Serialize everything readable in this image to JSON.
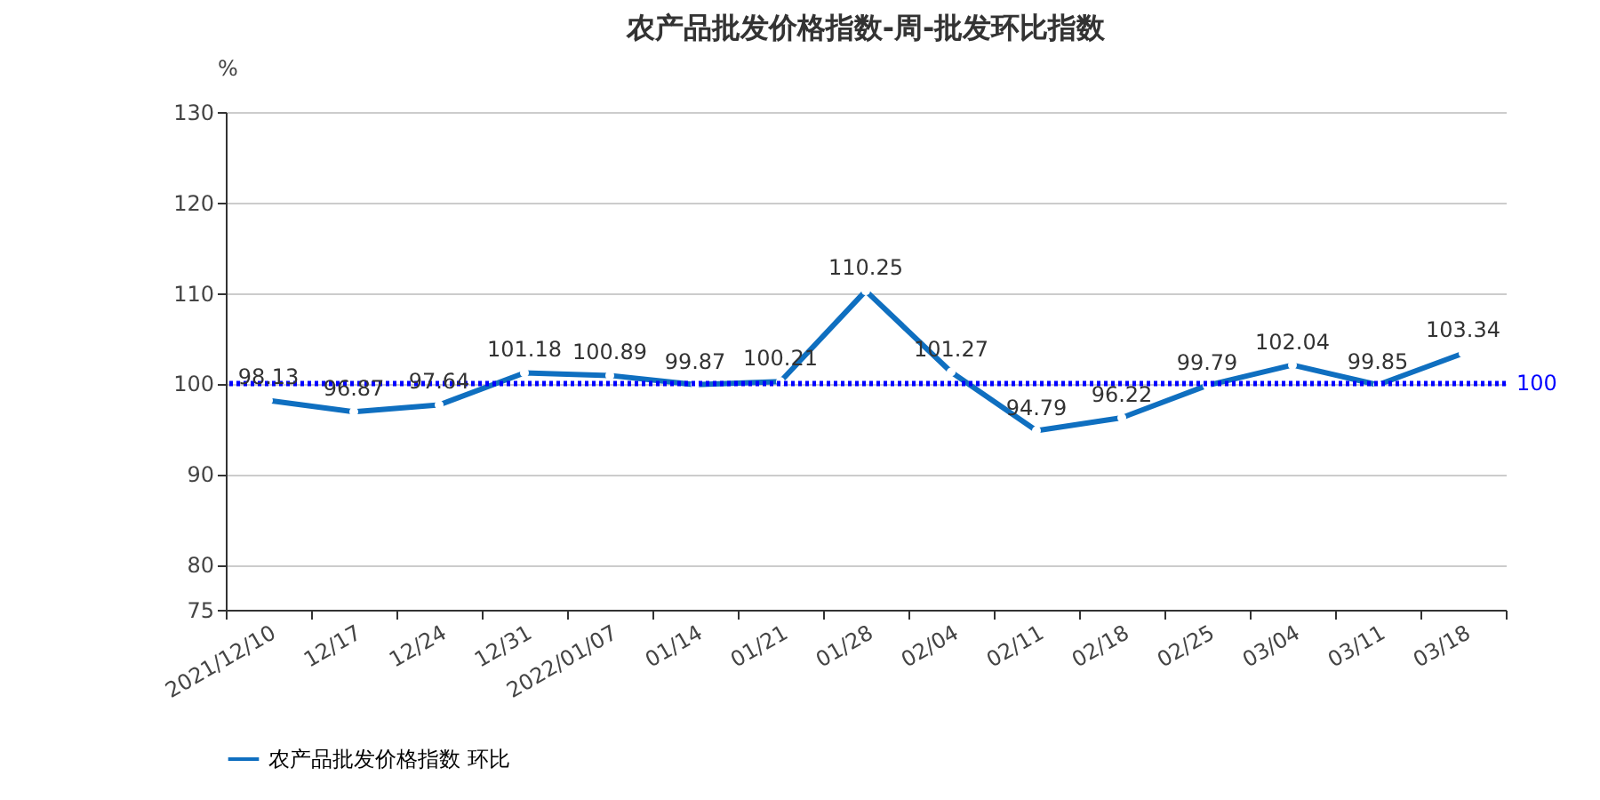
{
  "chart_data": {
    "type": "line",
    "title": "农产品批发价格指数-周-批发环比指数",
    "ylabel": "%",
    "categories": [
      "2021/12/10",
      "12/17",
      "12/24",
      "12/31",
      "2022/01/07",
      "01/14",
      "01/21",
      "01/28",
      "02/04",
      "02/11",
      "02/18",
      "02/25",
      "03/04",
      "03/11",
      "03/18"
    ],
    "series": [
      {
        "name": "农产品批发价格指数 环比",
        "color": "#0f6fc0",
        "values": [
          98.13,
          96.87,
          97.64,
          101.18,
          100.89,
          99.87,
          100.21,
          110.25,
          101.27,
          94.79,
          96.22,
          99.79,
          102.04,
          99.85,
          103.34
        ]
      }
    ],
    "ylim": [
      75,
      130
    ],
    "yticks": [
      75,
      80,
      90,
      100,
      110,
      120,
      130
    ],
    "grid": "y",
    "legend": "bottom",
    "marker": "circle",
    "line_style": "solid",
    "data_labels": true,
    "ref_lines": [
      {
        "axis": "y",
        "value": 100,
        "label": "100",
        "color": "#0000ff",
        "line_style": "dotted"
      }
    ]
  }
}
